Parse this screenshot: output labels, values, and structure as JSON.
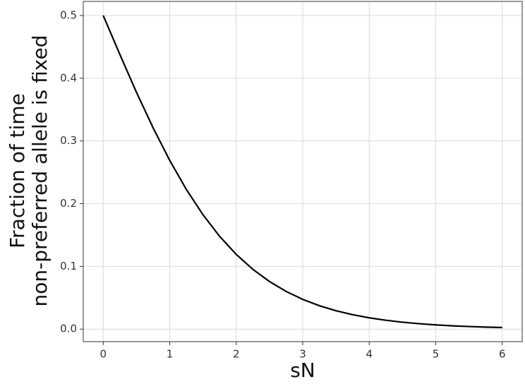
{
  "chart_data": {
    "type": "line",
    "xlabel": "sN",
    "ylabel": [
      "Fraction of time",
      "non-preferred allele is fixed"
    ],
    "x": [
      0,
      0.25,
      0.5,
      0.75,
      1,
      1.25,
      1.5,
      1.75,
      2,
      2.25,
      2.5,
      2.75,
      3,
      3.25,
      3.5,
      3.75,
      4,
      4.25,
      4.5,
      4.75,
      5,
      5.25,
      5.5,
      5.75,
      6
    ],
    "series": [
      {
        "color": "#000000",
        "values": [
          0.5,
          0.438,
          0.3775,
          0.321,
          0.269,
          0.2227,
          0.1824,
          0.148,
          0.1192,
          0.0953,
          0.0759,
          0.0601,
          0.0474,
          0.0373,
          0.0293,
          0.023,
          0.018,
          0.0141,
          0.011,
          0.0086,
          0.0067,
          0.0052,
          0.0041,
          0.0032,
          0.0025
        ]
      }
    ],
    "xlim": [
      -0.3,
      6.3
    ],
    "ylim": [
      -0.02,
      0.5225
    ],
    "xticks": [
      0,
      1,
      2,
      3,
      4,
      5,
      6
    ],
    "yticks": [
      {
        "value": 0,
        "label": "0.0"
      },
      {
        "value": 0.1,
        "label": "0.1"
      },
      {
        "value": 0.2,
        "label": "0.2"
      },
      {
        "value": 0.3,
        "label": "0.3"
      },
      {
        "value": 0.4,
        "label": "0.4"
      },
      {
        "value": 0.5,
        "label": "0.5"
      }
    ],
    "grid": true
  }
}
